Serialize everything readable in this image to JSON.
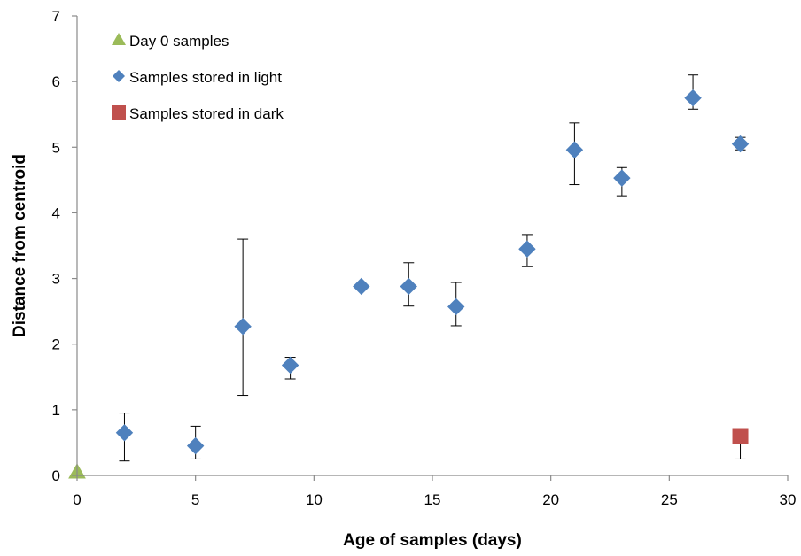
{
  "chart_data": {
    "type": "scatter",
    "title": "",
    "xlabel": "Age of samples (days)",
    "ylabel": "Distance from centroid",
    "xlim": [
      0,
      30
    ],
    "ylim": [
      0,
      7
    ],
    "xticks": [
      "0",
      "5",
      "10",
      "15",
      "20",
      "25",
      "30"
    ],
    "yticks": [
      "0",
      "1",
      "2",
      "3",
      "4",
      "5",
      "6",
      "7"
    ],
    "grid": false,
    "legend_position": "top-left",
    "series": [
      {
        "name": "Day 0 samples",
        "marker": "triangle",
        "color": "#9BBB59",
        "points": [
          {
            "x": 0,
            "y": 0.05
          }
        ]
      },
      {
        "name": "Samples stored in light",
        "marker": "diamond",
        "color": "#4F81BD",
        "points": [
          {
            "x": 2,
            "y": 0.65,
            "err_low": 0.22,
            "err_high": 0.95
          },
          {
            "x": 5,
            "y": 0.45,
            "err_low": 0.25,
            "err_high": 0.75
          },
          {
            "x": 7,
            "y": 2.27,
            "err_low": 1.22,
            "err_high": 3.6
          },
          {
            "x": 9,
            "y": 1.68,
            "err_low": 1.47,
            "err_high": 1.8
          },
          {
            "x": 12,
            "y": 2.88
          },
          {
            "x": 14,
            "y": 2.88,
            "err_low": 2.58,
            "err_high": 3.24
          },
          {
            "x": 16,
            "y": 2.57,
            "err_low": 2.28,
            "err_high": 2.94
          },
          {
            "x": 19,
            "y": 3.45,
            "err_low": 3.18,
            "err_high": 3.67
          },
          {
            "x": 21,
            "y": 4.96,
            "err_low": 4.43,
            "err_high": 5.37
          },
          {
            "x": 23,
            "y": 4.53,
            "err_low": 4.26,
            "err_high": 4.69
          },
          {
            "x": 26,
            "y": 5.75,
            "err_low": 5.58,
            "err_high": 6.1
          },
          {
            "x": 28,
            "y": 5.05,
            "err_low": 4.96,
            "err_high": 5.15
          }
        ]
      },
      {
        "name": "Samples stored in dark",
        "marker": "square",
        "color": "#C0504D",
        "points": [
          {
            "x": 28,
            "y": 0.6,
            "err_low": 0.25,
            "err_high": 0.6
          }
        ]
      }
    ]
  }
}
